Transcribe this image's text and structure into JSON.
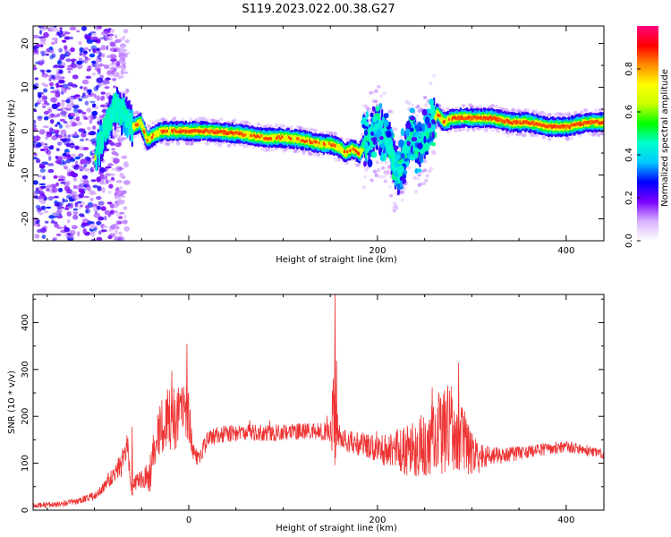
{
  "title": "S119.2023.022.00.38.G27",
  "chart_data": [
    {
      "type": "heatmap",
      "panel": "spectrogram",
      "xlabel": "Height of straight line (km)",
      "ylabel": "Frequency (Hz)",
      "xlim": [
        -165,
        440
      ],
      "ylim": [
        -25,
        24
      ],
      "x_ticks": [
        0,
        200,
        400
      ],
      "y_ticks": [
        -20,
        -10,
        0,
        10,
        20
      ],
      "grid": false,
      "colorbar": {
        "label": "Normalized spectral amplitude",
        "range": [
          0.0,
          1.0
        ],
        "ticks": [
          "0.0",
          "0.2",
          "0.4",
          "0.6",
          "0.8"
        ],
        "colors": [
          "#ffffff",
          "#d9b3ff",
          "#7b00ff",
          "#0000ff",
          "#00c8ff",
          "#00ffcc",
          "#00ff00",
          "#c8ff00",
          "#ffff00",
          "#ff8c00",
          "#ff0000",
          "#ff0080"
        ]
      },
      "ridge": {
        "x": [
          -165,
          -140,
          -120,
          -108,
          -100,
          -90,
          -80,
          -70,
          -60,
          -52,
          -45,
          -38,
          -30,
          -20,
          0,
          20,
          50,
          80,
          100,
          120,
          140,
          150,
          160,
          165,
          172,
          180,
          185,
          190,
          198,
          205,
          212,
          218,
          222,
          228,
          235,
          242,
          248,
          255,
          262,
          270,
          280,
          300,
          320,
          340,
          360,
          380,
          400,
          420,
          440
        ],
        "freq": [
          2,
          0,
          -3,
          -8,
          -6,
          0,
          5,
          4,
          1,
          2,
          -2,
          -1,
          0,
          0,
          0,
          0,
          -0.5,
          -1.5,
          -1.5,
          -2,
          -3,
          -3,
          -4,
          -5,
          -4,
          -5,
          -3,
          -2,
          0,
          0,
          -3,
          -8,
          -10,
          -5,
          0,
          -4,
          -2,
          0,
          4,
          2,
          3,
          3,
          3,
          2,
          2,
          1,
          1,
          2,
          2
        ]
      },
      "noise_region_x": [
        -165,
        -80
      ],
      "broad_region_x": [
        185,
        260
      ]
    },
    {
      "type": "line",
      "panel": "snr",
      "xlabel": "Height of straight line (km)",
      "ylabel": "SNR (10 * v/v)",
      "xlim": [
        -165,
        440
      ],
      "ylim": [
        0,
        460
      ],
      "x_ticks": [
        0,
        200,
        400
      ],
      "y_ticks": [
        0,
        100,
        200,
        300,
        400
      ],
      "grid": false,
      "series": [
        {
          "color": "#ee3333",
          "x": [
            -165,
            -140,
            -120,
            -100,
            -90,
            -80,
            -70,
            -65,
            -62,
            -60,
            -58,
            -55,
            -45,
            -40,
            -35,
            -30,
            -25,
            -20,
            -15,
            -10,
            -5,
            0,
            5,
            10,
            15,
            20,
            30,
            50,
            70,
            100,
            130,
            150,
            154,
            156,
            158,
            162,
            175,
            200,
            230,
            250,
            260,
            270,
            280,
            290,
            300,
            310,
            330,
            360,
            400,
            440
          ],
          "mid": [
            10,
            12,
            18,
            30,
            50,
            75,
            110,
            145,
            60,
            40,
            55,
            60,
            70,
            80,
            150,
            170,
            185,
            200,
            195,
            210,
            220,
            200,
            125,
            110,
            130,
            150,
            160,
            165,
            165,
            165,
            170,
            165,
            200,
            240,
            160,
            150,
            145,
            130,
            125,
            140,
            160,
            170,
            175,
            150,
            120,
            115,
            115,
            125,
            135,
            120
          ],
          "amp": [
            6,
            6,
            7,
            9,
            12,
            18,
            28,
            30,
            18,
            12,
            15,
            18,
            30,
            45,
            55,
            60,
            65,
            70,
            75,
            70,
            65,
            55,
            20,
            18,
            18,
            18,
            18,
            18,
            18,
            18,
            18,
            20,
            130,
            150,
            30,
            22,
            25,
            28,
            55,
            70,
            80,
            95,
            100,
            80,
            45,
            25,
            18,
            15,
            12,
            10
          ],
          "peaks": [
            {
              "x": -60,
              "y": 178
            },
            {
              "x": -18,
              "y": 297
            },
            {
              "x": -2,
              "y": 355
            },
            {
              "x": 155,
              "y": 460
            },
            {
              "x": 258,
              "y": 262
            },
            {
              "x": 286,
              "y": 315
            }
          ]
        }
      ]
    }
  ]
}
